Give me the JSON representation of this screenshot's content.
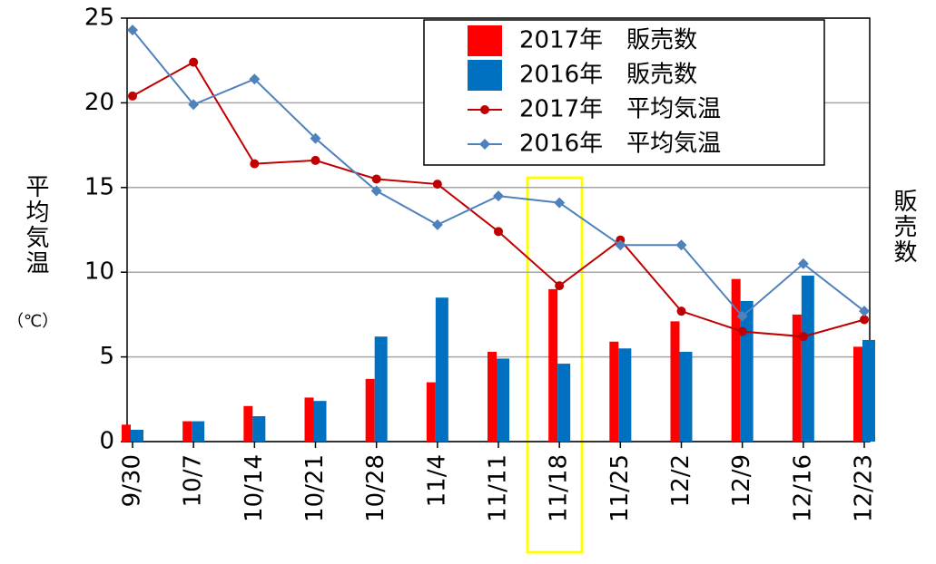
{
  "chart_data": {
    "type": "bar",
    "y_label": "平均気温",
    "y_unit": "（℃）",
    "y2_label": "販売数",
    "categories": [
      "9/30",
      "10/7",
      "10/14",
      "10/21",
      "10/28",
      "11/4",
      "11/11",
      "11/18",
      "11/25",
      "12/2",
      "12/9",
      "12/16",
      "12/23"
    ],
    "series": [
      {
        "name": "2017年　販売数",
        "type": "bar",
        "color": "#ff0000",
        "values": [
          1.0,
          1.2,
          2.1,
          2.6,
          3.7,
          3.5,
          5.3,
          9.0,
          5.9,
          7.1,
          9.6,
          7.5,
          5.6
        ]
      },
      {
        "name": "2016年　販売数",
        "type": "bar",
        "color": "#0070c0",
        "values": [
          0.7,
          1.2,
          1.5,
          2.4,
          6.2,
          8.5,
          4.9,
          4.6,
          5.5,
          5.3,
          8.3,
          9.8,
          6.0
        ]
      },
      {
        "name": "2017年　平均気温",
        "type": "line",
        "marker": "circle",
        "color": "#c00000",
        "values": [
          20.4,
          22.4,
          16.4,
          16.6,
          15.5,
          15.2,
          12.4,
          9.2,
          11.9,
          7.7,
          6.5,
          6.2,
          7.2
        ]
      },
      {
        "name": "2016年　平均気温",
        "type": "line",
        "marker": "diamond",
        "color": "#4f81bd",
        "values": [
          24.3,
          19.9,
          21.4,
          17.9,
          14.8,
          12.8,
          14.5,
          14.1,
          11.6,
          11.6,
          7.4,
          10.5,
          7.7
        ]
      }
    ],
    "ylim": [
      0,
      25
    ],
    "yticks": [
      0,
      5,
      10,
      15,
      20,
      25
    ],
    "grid": true
  }
}
